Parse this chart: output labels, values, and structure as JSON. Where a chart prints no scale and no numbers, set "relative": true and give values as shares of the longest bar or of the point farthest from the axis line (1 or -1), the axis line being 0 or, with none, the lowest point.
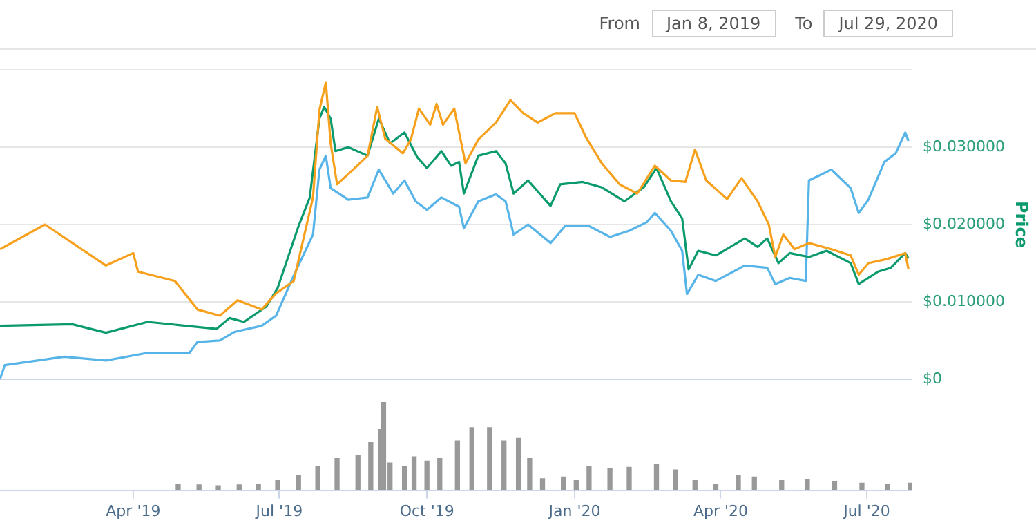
{
  "chart_data": [
    {
      "type": "line",
      "annotations": [
        "From",
        "Jan 8, 2019",
        "To",
        "Jul 29, 2020"
      ],
      "ylabel": "Price",
      "xlim": [
        "2019-01-08",
        "2020-07-29"
      ],
      "ylim": [
        0,
        0.04
      ],
      "yticks": [
        {
          "value": 0,
          "label": "$0"
        },
        {
          "value": 0.01,
          "label": "$0.010000"
        },
        {
          "value": 0.02,
          "label": "$0.020000"
        },
        {
          "value": 0.03,
          "label": "$0.030000"
        },
        {
          "value": 0.04,
          "label": null
        }
      ],
      "tick_labels": "y",
      "grid": "y",
      "legend": false,
      "marker": "none",
      "line_style": "solid",
      "series": [
        {
          "color": "#f7a01c",
          "x": [
            "2019-01-08",
            "2019-02-05",
            "2019-03-15",
            "2019-04-01",
            "2019-04-04",
            "2019-04-27",
            "2019-05-11",
            "2019-05-25",
            "2019-06-05",
            "2019-06-20",
            "2019-06-29",
            "2019-07-10",
            "2019-07-22",
            "2019-07-26",
            "2019-07-30",
            "2019-08-02",
            "2019-08-06",
            "2019-08-17",
            "2019-08-25",
            "2019-08-31",
            "2019-09-05",
            "2019-09-16",
            "2019-09-21",
            "2019-09-26",
            "2019-10-03",
            "2019-10-07",
            "2019-10-11",
            "2019-10-18",
            "2019-10-25",
            "2019-11-02",
            "2019-11-13",
            "2019-11-22",
            "2019-11-30",
            "2019-12-09",
            "2019-12-20",
            "2020-01-01",
            "2020-01-08",
            "2020-01-18",
            "2020-01-29",
            "2020-02-09",
            "2020-02-20",
            "2020-03-01",
            "2020-03-10",
            "2020-03-16",
            "2020-03-23",
            "2020-04-05",
            "2020-04-14",
            "2020-04-24",
            "2020-05-01",
            "2020-05-05",
            "2020-05-10",
            "2020-05-17",
            "2020-05-26",
            "2020-06-09",
            "2020-06-21",
            "2020-06-26",
            "2020-07-02",
            "2020-07-13",
            "2020-07-25",
            "2020-07-27"
          ],
          "values": [
            0.0168,
            0.02,
            0.0147,
            0.0163,
            0.0139,
            0.0127,
            0.009,
            0.0082,
            0.0102,
            0.009,
            0.0111,
            0.0127,
            0.0235,
            0.0348,
            0.0384,
            0.0305,
            0.0252,
            0.0273,
            0.0289,
            0.0352,
            0.0311,
            0.0292,
            0.031,
            0.035,
            0.0329,
            0.0356,
            0.0329,
            0.035,
            0.0279,
            0.031,
            0.0332,
            0.0361,
            0.0344,
            0.0332,
            0.0344,
            0.0344,
            0.0313,
            0.0279,
            0.0252,
            0.024,
            0.0276,
            0.0257,
            0.0255,
            0.0297,
            0.0257,
            0.0233,
            0.026,
            0.023,
            0.02,
            0.0158,
            0.0187,
            0.0168,
            0.0176,
            0.0168,
            0.016,
            0.0135,
            0.015,
            0.0155,
            0.0163,
            0.0142
          ]
        },
        {
          "color": "#0b9a6d",
          "x": [
            "2019-01-08",
            "2019-02-22",
            "2019-03-15",
            "2019-04-10",
            "2019-05-23",
            "2019-05-31",
            "2019-06-09",
            "2019-06-23",
            "2019-06-30",
            "2019-07-13",
            "2019-07-20",
            "2019-07-26",
            "2019-07-29",
            "2019-08-02",
            "2019-08-05",
            "2019-08-13",
            "2019-08-25",
            "2019-09-01",
            "2019-09-08",
            "2019-09-17",
            "2019-09-25",
            "2019-10-01",
            "2019-10-10",
            "2019-10-16",
            "2019-10-21",
            "2019-10-24",
            "2019-11-02",
            "2019-11-13",
            "2019-11-19",
            "2019-11-24",
            "2019-12-03",
            "2019-12-17",
            "2019-12-23",
            "2020-01-06",
            "2020-01-18",
            "2020-02-01",
            "2020-02-13",
            "2020-02-21",
            "2020-03-01",
            "2020-03-08",
            "2020-03-12",
            "2020-03-18",
            "2020-03-29",
            "2020-04-16",
            "2020-04-24",
            "2020-04-30",
            "2020-05-07",
            "2020-05-14",
            "2020-05-26",
            "2020-06-06",
            "2020-06-21",
            "2020-06-26",
            "2020-07-08",
            "2020-07-16",
            "2020-07-25",
            "2020-07-27"
          ],
          "values": [
            0.0069,
            0.0071,
            0.006,
            0.0074,
            0.0065,
            0.0079,
            0.0074,
            0.0094,
            0.0118,
            0.0198,
            0.0235,
            0.0337,
            0.0352,
            0.0337,
            0.0295,
            0.03,
            0.0289,
            0.0337,
            0.0305,
            0.0319,
            0.0287,
            0.0273,
            0.0295,
            0.0276,
            0.0281,
            0.024,
            0.0289,
            0.0295,
            0.0279,
            0.024,
            0.0257,
            0.0224,
            0.0252,
            0.0255,
            0.0248,
            0.023,
            0.0248,
            0.0273,
            0.023,
            0.0208,
            0.0142,
            0.0166,
            0.016,
            0.0182,
            0.0171,
            0.0182,
            0.015,
            0.0163,
            0.0158,
            0.0166,
            0.015,
            0.0123,
            0.0139,
            0.0144,
            0.0163,
            0.0156
          ]
        },
        {
          "color": "#57b4e8",
          "x": [
            "2019-01-08",
            "2019-01-11",
            "2019-02-17",
            "2019-03-15",
            "2019-04-10",
            "2019-05-06",
            "2019-05-11",
            "2019-05-25",
            "2019-06-03",
            "2019-06-20",
            "2019-06-29",
            "2019-07-10",
            "2019-07-22",
            "2019-07-26",
            "2019-07-30",
            "2019-08-02",
            "2019-08-13",
            "2019-08-25",
            "2019-09-01",
            "2019-09-10",
            "2019-09-17",
            "2019-09-24",
            "2019-10-01",
            "2019-10-10",
            "2019-10-21",
            "2019-10-24",
            "2019-11-02",
            "2019-11-13",
            "2019-11-19",
            "2019-11-24",
            "2019-12-03",
            "2019-12-17",
            "2019-12-26",
            "2020-01-10",
            "2020-01-23",
            "2020-02-04",
            "2020-02-15",
            "2020-02-20",
            "2020-03-01",
            "2020-03-08",
            "2020-03-11",
            "2020-03-18",
            "2020-03-29",
            "2020-04-16",
            "2020-04-30",
            "2020-05-05",
            "2020-05-14",
            "2020-05-24",
            "2020-05-26",
            "2020-06-09",
            "2020-06-21",
            "2020-06-26",
            "2020-07-02",
            "2020-07-12",
            "2020-07-19",
            "2020-07-25",
            "2020-07-27"
          ],
          "values": [
            0,
            0.0018,
            0.0029,
            0.0024,
            0.0034,
            0.0034,
            0.0048,
            0.005,
            0.0061,
            0.0069,
            0.0082,
            0.0134,
            0.0187,
            0.0271,
            0.0289,
            0.0247,
            0.0232,
            0.0235,
            0.0271,
            0.024,
            0.0257,
            0.023,
            0.0219,
            0.0235,
            0.0223,
            0.0195,
            0.023,
            0.0239,
            0.023,
            0.0187,
            0.02,
            0.0176,
            0.0198,
            0.0198,
            0.0184,
            0.0192,
            0.0203,
            0.0215,
            0.0192,
            0.0166,
            0.011,
            0.0135,
            0.0127,
            0.0147,
            0.0144,
            0.0123,
            0.0131,
            0.0127,
            0.0257,
            0.0271,
            0.0247,
            0.0215,
            0.0232,
            0.0281,
            0.0292,
            0.0319,
            0.0308
          ]
        }
      ]
    },
    {
      "type": "bar",
      "relative": true,
      "tick_labels": "x",
      "grid": false,
      "legend": false,
      "xlim": [
        "2019-01-08",
        "2020-07-29"
      ],
      "xticks": [
        {
          "value": "2019-04-01",
          "label": "Apr '19"
        },
        {
          "value": "2019-07-01",
          "label": "Jul '19"
        },
        {
          "value": "2019-10-01",
          "label": "Oct '19"
        },
        {
          "value": "2020-01-01",
          "label": "Jan '20"
        },
        {
          "value": "2020-04-01",
          "label": "Apr '20"
        },
        {
          "value": "2020-07-01",
          "label": "Jul '20"
        }
      ],
      "series": [
        {
          "color": "#999999",
          "x": [
            "2019-04-29",
            "2019-05-12",
            "2019-05-24",
            "2019-06-06",
            "2019-06-18",
            "2019-06-30",
            "2019-07-13",
            "2019-07-25",
            "2019-08-06",
            "2019-08-19",
            "2019-08-27",
            "2019-09-02",
            "2019-09-04",
            "2019-09-08",
            "2019-09-17",
            "2019-09-23",
            "2019-10-01",
            "2019-10-09",
            "2019-10-20",
            "2019-10-29",
            "2019-11-09",
            "2019-11-18",
            "2019-11-27",
            "2019-12-04",
            "2019-12-12",
            "2019-12-25",
            "2020-01-02",
            "2020-01-10",
            "2020-01-23",
            "2020-02-04",
            "2020-02-21",
            "2020-03-04",
            "2020-03-16",
            "2020-03-29",
            "2020-04-12",
            "2020-04-22",
            "2020-05-09",
            "2020-05-25",
            "2020-06-11",
            "2020-06-28",
            "2020-07-14",
            "2020-07-28"
          ],
          "values": [
            0.066,
            0.06,
            0.05,
            0.06,
            0.066,
            0.11,
            0.17,
            0.27,
            0.36,
            0.4,
            0.54,
            0.69,
            1,
            0.31,
            0.27,
            0.38,
            0.33,
            0.36,
            0.56,
            0.71,
            0.71,
            0.56,
            0.59,
            0.36,
            0.13,
            0.15,
            0.11,
            0.27,
            0.25,
            0.26,
            0.29,
            0.23,
            0.11,
            0.066,
            0.17,
            0.15,
            0.11,
            0.12,
            0.1,
            0.08,
            0.07,
            0.08
          ]
        }
      ]
    }
  ]
}
